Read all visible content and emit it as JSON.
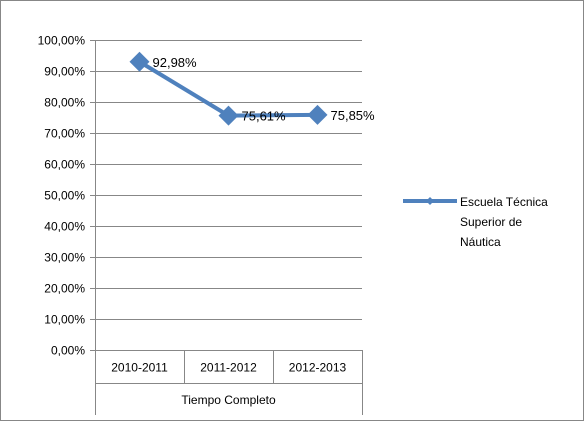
{
  "chart_data": {
    "type": "line",
    "categories": [
      "2010-2011",
      "2011-2012",
      "2012-2013"
    ],
    "group_label": "Tiempo Completo",
    "series": [
      {
        "name": "Escuela Técnica Superior de Náutica",
        "legend_lines": [
          "Escuela Técnica",
          "Superior de",
          "Náutica"
        ],
        "values": [
          92.98,
          75.61,
          75.85
        ],
        "data_labels": [
          "92,98%",
          "75,61%",
          "75,85%"
        ],
        "color": "#4f81bd",
        "marker": "diamond"
      }
    ],
    "y_ticks": [
      0,
      10,
      20,
      30,
      40,
      50,
      60,
      70,
      80,
      90,
      100
    ],
    "y_tick_labels": [
      "0,00%",
      "10,00%",
      "20,00%",
      "30,00%",
      "40,00%",
      "50,00%",
      "60,00%",
      "70,00%",
      "80,00%",
      "90,00%",
      "100,00%"
    ],
    "ylim": [
      0,
      100
    ],
    "grid": true,
    "legend_position": "right",
    "title": "",
    "xlabel": "",
    "ylabel": ""
  },
  "colors": {
    "series": "#4f81bd",
    "grid": "#878787",
    "frame": "#878787"
  }
}
